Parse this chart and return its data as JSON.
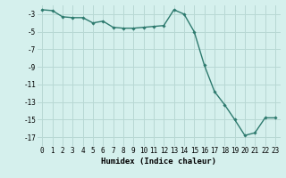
{
  "x": [
    0,
    1,
    2,
    3,
    4,
    5,
    6,
    7,
    8,
    9,
    10,
    11,
    12,
    13,
    14,
    15,
    16,
    17,
    18,
    19,
    20,
    21,
    22,
    23
  ],
  "y": [
    -2.5,
    -2.6,
    -3.3,
    -3.4,
    -3.4,
    -4.0,
    -3.8,
    -4.5,
    -4.6,
    -4.6,
    -4.5,
    -4.4,
    -4.3,
    -2.5,
    -3.0,
    -5.0,
    -8.8,
    -11.8,
    -13.3,
    -15.0,
    -16.8,
    -16.5,
    -14.8,
    -14.8
  ],
  "line_color": "#2d7a6e",
  "marker": "D",
  "marker_size": 1.8,
  "line_width": 1.0,
  "background_color": "#d5f0ed",
  "grid_color": "#b8d8d4",
  "xlabel": "Humidex (Indice chaleur)",
  "xlabel_fontsize": 6.5,
  "xlabel_weight": "bold",
  "yticks": [
    -3,
    -5,
    -7,
    -9,
    -11,
    -13,
    -15,
    -17
  ],
  "xticks": [
    0,
    1,
    2,
    3,
    4,
    5,
    6,
    7,
    8,
    9,
    10,
    11,
    12,
    13,
    14,
    15,
    16,
    17,
    18,
    19,
    20,
    21,
    22,
    23
  ],
  "ylim": [
    -18.0,
    -2.0
  ],
  "xlim": [
    -0.5,
    23.5
  ],
  "tick_fontsize": 5.5
}
